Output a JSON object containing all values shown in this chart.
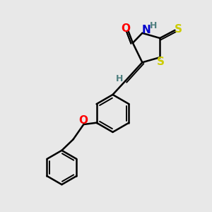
{
  "background_color": "#e8e8e8",
  "bond_color": "#000000",
  "atom_colors": {
    "O": "#ff0000",
    "N": "#0000cc",
    "S": "#cccc00",
    "H": "#508080",
    "C": "#000000"
  },
  "figsize": [
    3.0,
    3.0
  ],
  "dpi": 100
}
